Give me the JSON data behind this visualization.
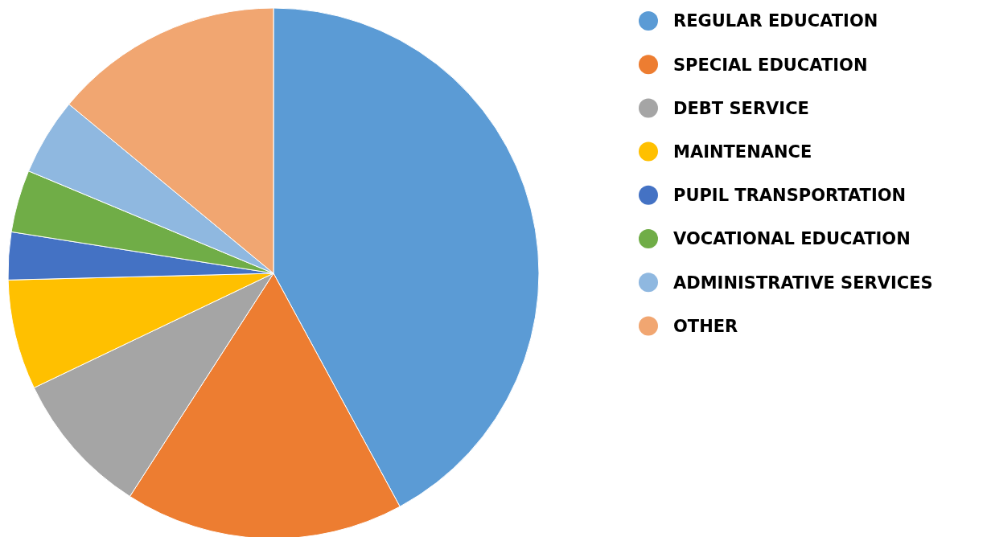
{
  "chart_data": {
    "type": "pie",
    "categories": [
      "REGULAR EDUCATION",
      "SPECIAL EDUCATION",
      "DEBT SERVICE",
      "MAINTENANCE",
      "PUPIL TRANSPORTATION",
      "VOCATIONAL EDUCATION",
      "ADMINISTRATIVE SERVICES",
      "OTHER"
    ],
    "values": [
      42.1,
      17.0,
      8.8,
      6.7,
      2.9,
      3.8,
      4.7,
      14.0
    ],
    "colors": [
      "#5b9bd5",
      "#ed7d31",
      "#a5a5a5",
      "#ffc000",
      "#4472c4",
      "#70ad47",
      "#8fb8e0",
      "#f1a671"
    ],
    "legend": "right"
  }
}
